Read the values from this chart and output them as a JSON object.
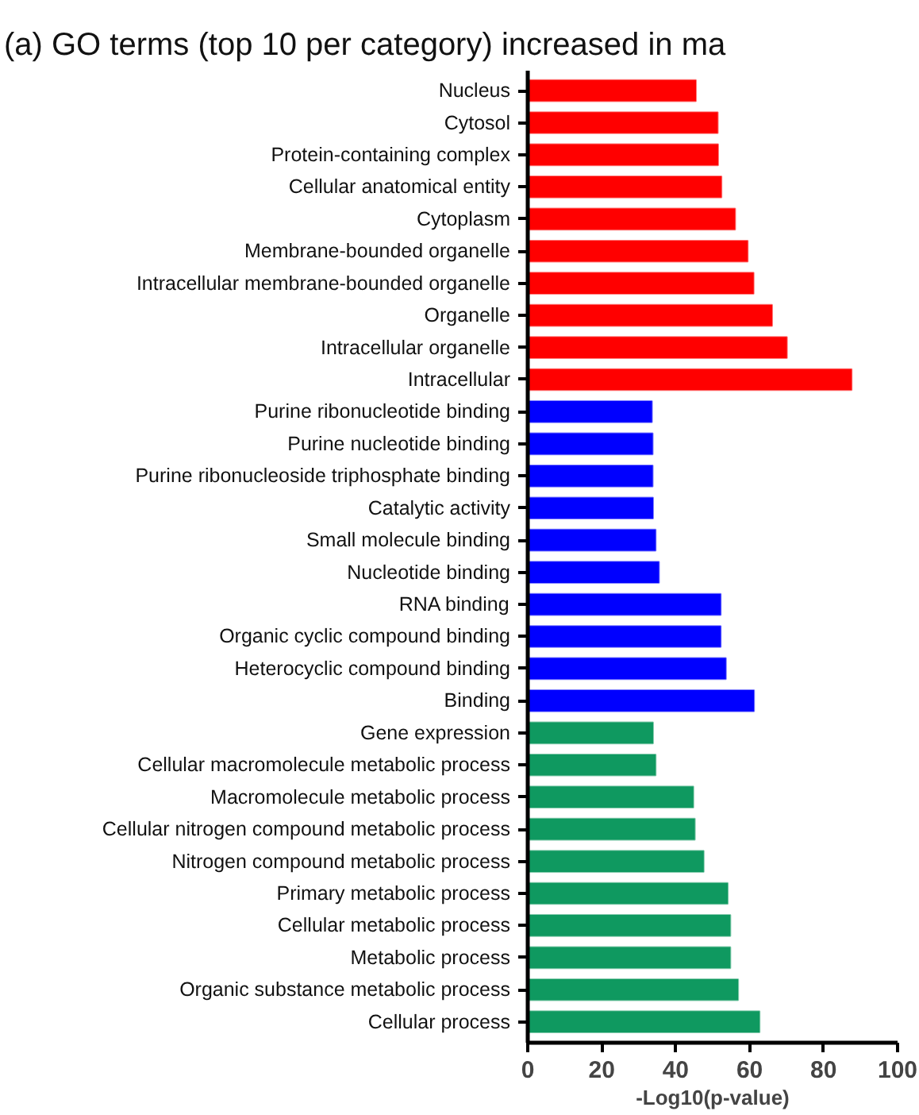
{
  "chart_data": {
    "type": "bar",
    "orientation": "horizontal",
    "title": "(a)  GO terms (top 10 per category) increased in ma",
    "xlabel": "-Log10(p-value)",
    "categories": [
      "Nucleus",
      "Cytosol",
      "Protein-containing complex",
      "Cellular anatomical entity",
      "Cytoplasm",
      "Membrane-bounded organelle",
      "Intracellular membrane-bounded organelle",
      "Organelle",
      "Intracellular organelle",
      "Intracellular",
      "Purine ribonucleotide binding",
      "Purine nucleotide binding",
      "Purine ribonucleoside triphosphate binding",
      "Catalytic activity",
      "Small molecule binding",
      "Nucleotide binding",
      "RNA binding",
      "Organic cyclic compound binding",
      "Heterocyclic compound binding",
      "Binding",
      "Gene expression",
      "Cellular macromolecule metabolic process",
      "Macromolecule metabolic process",
      "Cellular nitrogen compound metabolic process",
      "Nitrogen compound metabolic process",
      "Primary metabolic process",
      "Cellular metabolic process",
      "Metabolic process",
      "Organic substance metabolic process",
      "Cellular process"
    ],
    "values": [
      45.5,
      51.4,
      51.5,
      52.4,
      56.1,
      59.5,
      61.1,
      66.1,
      70.1,
      87.6,
      33.6,
      33.8,
      33.8,
      33.9,
      34.6,
      35.5,
      52.2,
      52.2,
      53.6,
      61.2,
      33.9,
      34.6,
      44.8,
      45.2,
      47.6,
      54.1,
      54.8,
      54.8,
      56.9,
      62.7
    ],
    "colors": [
      "#ff0000",
      "#ff0000",
      "#ff0000",
      "#ff0000",
      "#ff0000",
      "#ff0000",
      "#ff0000",
      "#ff0000",
      "#ff0000",
      "#ff0000",
      "#0000ff",
      "#0000ff",
      "#0000ff",
      "#0000ff",
      "#0000ff",
      "#0000ff",
      "#0000ff",
      "#0000ff",
      "#0000ff",
      "#0000ff",
      "#0f9960",
      "#0f9960",
      "#0f9960",
      "#0f9960",
      "#0f9960",
      "#0f9960",
      "#0f9960",
      "#0f9960",
      "#0f9960",
      "#0f9960"
    ],
    "xlim": [
      0,
      100
    ],
    "xticks": [
      0,
      20,
      40,
      60,
      80,
      100
    ],
    "grid": false
  }
}
